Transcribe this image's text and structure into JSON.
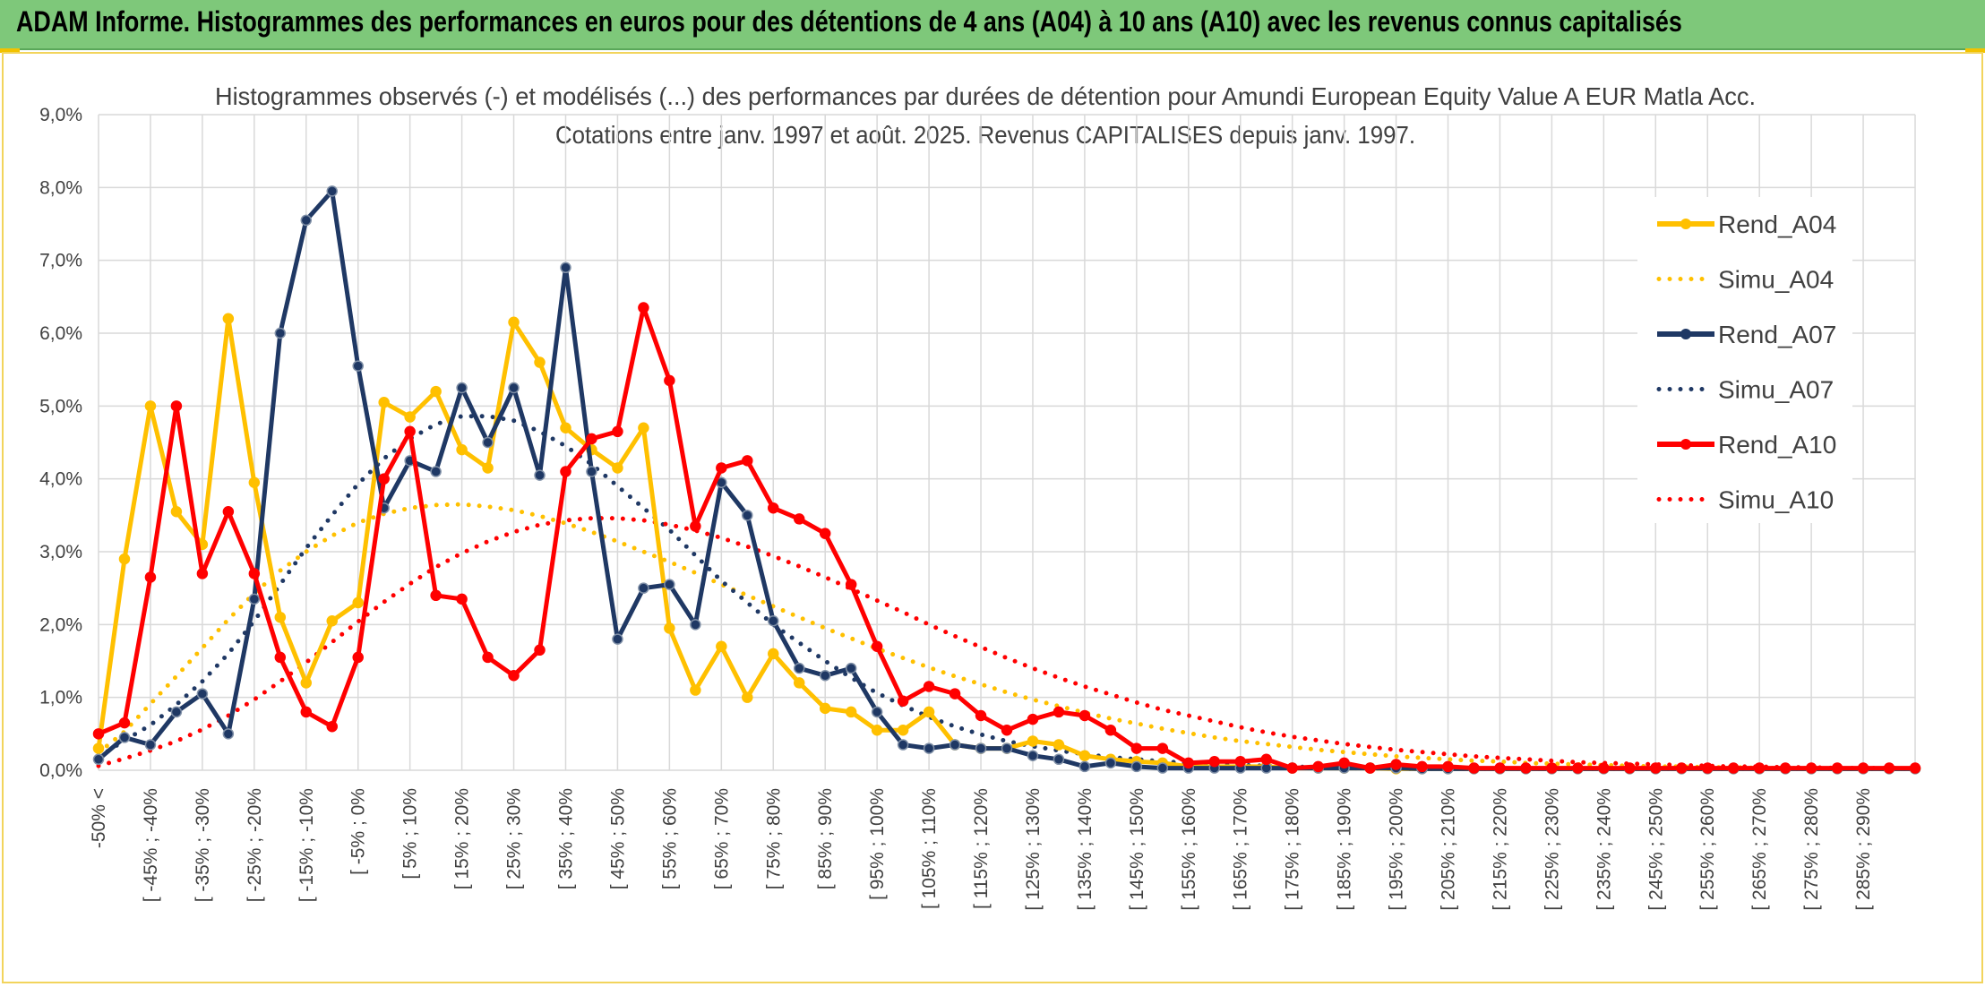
{
  "banner": {
    "title": "ADAM Informe. Histogrammes des performances en euros pour des détentions de 4 ans (A04) à 10 ans (A10) avec les revenus connus capitalisés"
  },
  "colors": {
    "banner": "#7ec87a",
    "A04": "#ffc000",
    "A07": "#1f3864",
    "A10": "#ff0000",
    "grid": "#d9d9d9"
  },
  "chart_data": {
    "type": "line",
    "title": "Histogrammes observés (-) et modélisés (...) des performances par durées de détention pour Amundi European Equity Value A EUR Matla Acc.",
    "subtitle": "Cotations entre janv. 1997 et août. 2025. Revenus CAPITALISES depuis janv. 1997.",
    "y_ticks": [
      "0,0%",
      "1,0%",
      "2,0%",
      "3,0%",
      "4,0%",
      "5,0%",
      "6,0%",
      "7,0%",
      "8,0%",
      "9,0%"
    ],
    "ylim": [
      0,
      9
    ],
    "y_unit": "%",
    "grid": true,
    "legend_position": "right",
    "x_tick_labels": [
      "-50% <",
      "[ -45% ; -40%",
      "[ -35% ; -30%",
      "[ -25% ; -20%",
      "[ -15% ; -10%",
      "[ -5% ; 0%",
      "[ 5% ; 10%",
      "[ 15% ; 20%",
      "[ 25% ; 30%",
      "[ 35% ; 40%",
      "[ 45% ; 50%",
      "[ 55% ; 60%",
      "[ 65% ; 70%",
      "[ 75% ; 80%",
      "[ 85% ; 90%",
      "[ 95% ; 100%",
      "[ 105% ; 110%",
      "[ 115% ; 120%",
      "[ 125% ; 130%",
      "[ 135% ; 140%",
      "[ 145% ; 150%",
      "[ 155% ; 160%",
      "[ 165% ; 170%",
      "[ 175% ; 180%",
      "[ 185% ; 190%",
      "[ 195% ; 200%",
      "[ 205% ; 210%",
      "[ 215% ; 220%",
      "[ 225% ; 230%",
      "[ 235% ; 240%",
      "[ 245% ; 250%",
      "[ 255% ; 260%",
      "[ 265% ; 270%",
      "[ 275% ; 280%",
      "[ 285% ; 290%"
    ],
    "series": [
      {
        "name": "Rend_A04",
        "style": "solid",
        "color": "#ffc000",
        "values": [
          0.3,
          2.9,
          5.0,
          3.55,
          3.1,
          6.2,
          3.95,
          2.1,
          1.2,
          2.05,
          2.3,
          5.05,
          4.85,
          5.2,
          4.4,
          4.15,
          6.15,
          5.6,
          4.7,
          4.4,
          4.15,
          4.7,
          1.95,
          1.1,
          1.7,
          1.0,
          1.6,
          1.2,
          0.85,
          0.8,
          0.55,
          0.55,
          0.8,
          0.35,
          0.3,
          0.3,
          0.4,
          0.35,
          0.2,
          0.15,
          0.12,
          0.1,
          0.05,
          0.05,
          0.05,
          0.05,
          0.03,
          0.03,
          0.03,
          0.03,
          0.02,
          0.02,
          0.02,
          0.02,
          0.02,
          0.02,
          0.02,
          0.02,
          0.02,
          0.02,
          0.02,
          0.02,
          0.02,
          0.02,
          0.02,
          0.02,
          0.02,
          0.02,
          0.02,
          0.02,
          0.02
        ]
      },
      {
        "name": "Simu_A04",
        "style": "dotted",
        "color": "#ffc000",
        "values": [
          0.24,
          0.53,
          0.91,
          1.29,
          1.68,
          2.07,
          2.43,
          2.74,
          3.0,
          3.22,
          3.4,
          3.52,
          3.6,
          3.64,
          3.65,
          3.62,
          3.57,
          3.49,
          3.39,
          3.27,
          3.14,
          3.0,
          2.86,
          2.71,
          2.55,
          2.4,
          2.25,
          2.1,
          1.95,
          1.81,
          1.67,
          1.54,
          1.41,
          1.29,
          1.18,
          1.07,
          0.97,
          0.88,
          0.79,
          0.71,
          0.64,
          0.57,
          0.51,
          0.45,
          0.4,
          0.36,
          0.32,
          0.28,
          0.25,
          0.22,
          0.19,
          0.17,
          0.15,
          0.13,
          0.12,
          0.1,
          0.09,
          0.08,
          0.07,
          0.06,
          0.05,
          0.05,
          0.04,
          0.04,
          0.03,
          0.03,
          0.03,
          0.02,
          0.02,
          0.02,
          0.02
        ]
      },
      {
        "name": "Rend_A07",
        "style": "solid",
        "color": "#1f3864",
        "values": [
          0.15,
          0.45,
          0.35,
          0.8,
          1.05,
          0.5,
          2.35,
          6.0,
          7.55,
          7.95,
          5.55,
          3.6,
          4.25,
          4.1,
          5.25,
          4.5,
          5.25,
          4.05,
          6.9,
          4.1,
          1.8,
          2.5,
          2.55,
          2.0,
          3.95,
          3.5,
          2.05,
          1.4,
          1.3,
          1.4,
          0.8,
          0.35,
          0.3,
          0.35,
          0.3,
          0.3,
          0.2,
          0.15,
          0.05,
          0.1,
          0.05,
          0.03,
          0.03,
          0.03,
          0.03,
          0.03,
          0.03,
          0.03,
          0.03,
          0.03,
          0.03,
          0.02,
          0.02,
          0.02,
          0.02,
          0.02,
          0.02,
          0.02,
          0.02,
          0.02,
          0.02,
          0.02,
          0.02,
          0.02,
          0.02,
          0.02,
          0.02,
          0.02,
          0.02,
          0.02,
          0.02
        ]
      },
      {
        "name": "Simu_A07",
        "style": "dotted",
        "color": "#1f3864",
        "values": [
          0.18,
          0.41,
          0.62,
          0.9,
          1.22,
          1.6,
          2.05,
          2.55,
          3.05,
          3.5,
          3.93,
          4.28,
          4.55,
          4.75,
          4.86,
          4.86,
          4.8,
          4.65,
          4.45,
          4.2,
          3.9,
          3.6,
          3.3,
          2.95,
          2.6,
          2.3,
          2.0,
          1.75,
          1.5,
          1.27,
          1.06,
          0.89,
          0.73,
          0.6,
          0.49,
          0.4,
          0.33,
          0.27,
          0.22,
          0.18,
          0.15,
          0.12,
          0.1,
          0.08,
          0.07,
          0.06,
          0.05,
          0.04,
          0.03,
          0.03,
          0.02,
          0.02,
          0.02,
          0.02,
          0.02,
          0.02,
          0.02,
          0.02,
          0.02,
          0.02,
          0.02,
          0.02,
          0.02,
          0.02,
          0.02,
          0.02,
          0.02,
          0.02,
          0.02,
          0.02,
          0.02
        ]
      },
      {
        "name": "Rend_A10",
        "style": "solid",
        "color": "#ff0000",
        "values": [
          0.5,
          0.65,
          2.65,
          5.0,
          2.7,
          3.55,
          2.7,
          1.55,
          0.8,
          0.6,
          1.55,
          4.0,
          4.65,
          2.4,
          2.35,
          1.55,
          1.3,
          1.65,
          4.1,
          4.55,
          4.65,
          6.35,
          5.35,
          3.35,
          4.15,
          4.25,
          3.6,
          3.45,
          3.25,
          2.55,
          1.7,
          0.95,
          1.15,
          1.05,
          0.75,
          0.55,
          0.7,
          0.8,
          0.75,
          0.55,
          0.3,
          0.3,
          0.1,
          0.12,
          0.12,
          0.15,
          0.03,
          0.05,
          0.1,
          0.03,
          0.08,
          0.05,
          0.05,
          0.03,
          0.03,
          0.03,
          0.03,
          0.03,
          0.03,
          0.03,
          0.03,
          0.03,
          0.03,
          0.03,
          0.03,
          0.03,
          0.03,
          0.03,
          0.03,
          0.03,
          0.03
        ]
      },
      {
        "name": "Simu_A10",
        "style": "dotted",
        "color": "#ff0000",
        "values": [
          0.06,
          0.16,
          0.27,
          0.4,
          0.56,
          0.75,
          0.97,
          1.22,
          1.48,
          1.76,
          2.04,
          2.31,
          2.56,
          2.79,
          2.98,
          3.14,
          3.27,
          3.37,
          3.43,
          3.46,
          3.46,
          3.43,
          3.37,
          3.29,
          3.19,
          3.07,
          2.94,
          2.8,
          2.65,
          2.49,
          2.33,
          2.17,
          2.0,
          1.84,
          1.69,
          1.54,
          1.4,
          1.27,
          1.15,
          1.04,
          0.93,
          0.83,
          0.75,
          0.67,
          0.59,
          0.52,
          0.46,
          0.41,
          0.36,
          0.32,
          0.28,
          0.25,
          0.22,
          0.19,
          0.17,
          0.15,
          0.13,
          0.11,
          0.1,
          0.09,
          0.08,
          0.07,
          0.06,
          0.05,
          0.05,
          0.04,
          0.04,
          0.03,
          0.03,
          0.03,
          0.02
        ]
      }
    ]
  }
}
